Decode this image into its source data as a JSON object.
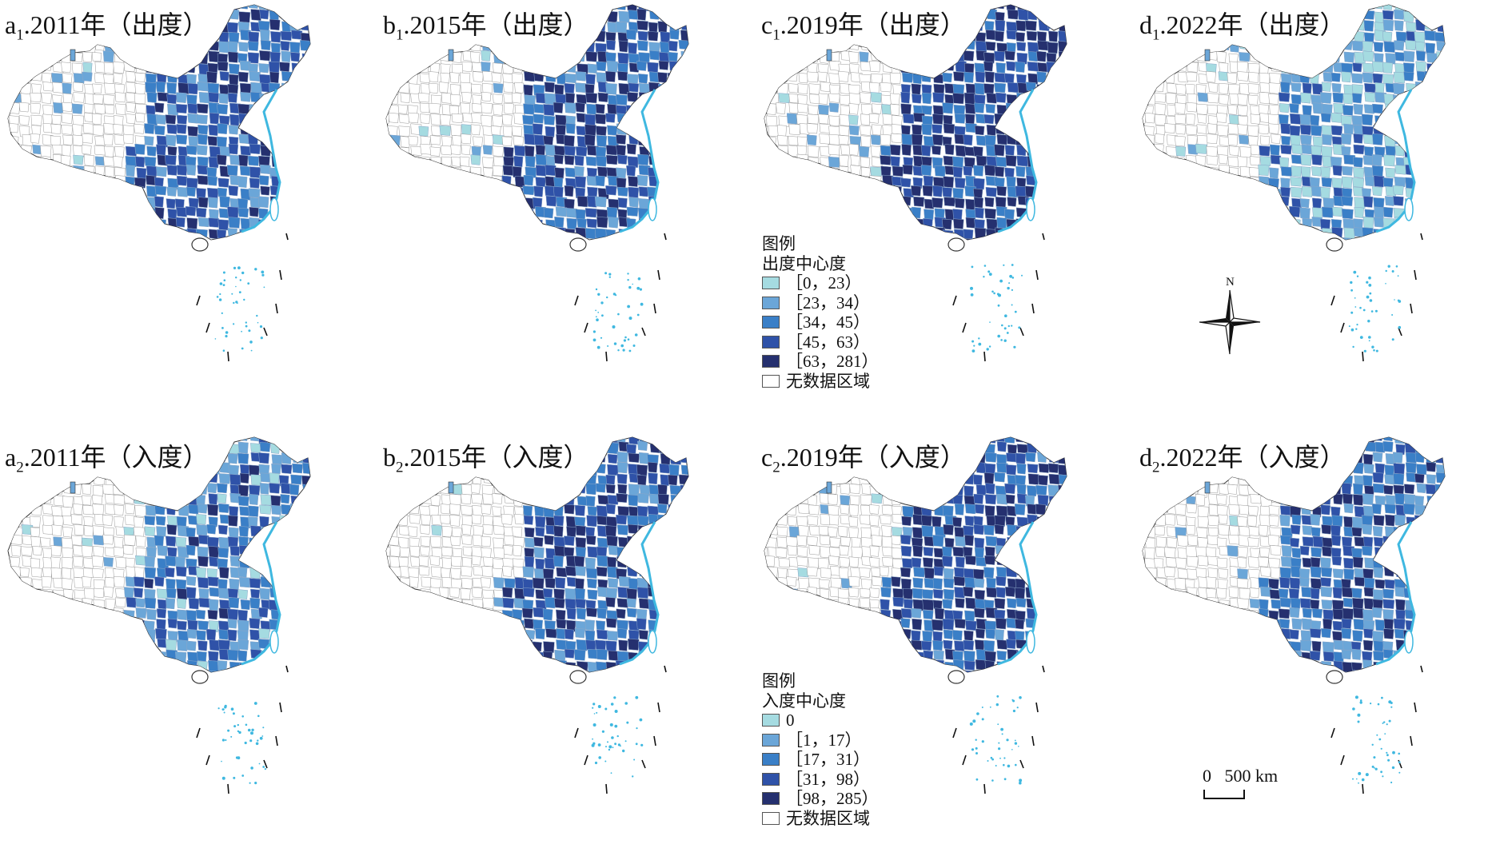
{
  "palette": [
    "#a5dbe1",
    "#6ba6d8",
    "#3a7fc7",
    "#2f52a8",
    "#25306f"
  ],
  "no_data_fill": "#ffffff",
  "coast_color": "#3fb8e0",
  "panels": [
    {
      "id": "a1",
      "letter": "a",
      "sub": "1",
      "year": "2011",
      "rest": "年（出度）",
      "level": 0.58
    },
    {
      "id": "b1",
      "letter": "b",
      "sub": "1",
      "year": "2015",
      "rest": "年（出度）",
      "level": 0.66
    },
    {
      "id": "c1",
      "letter": "c",
      "sub": "1",
      "year": "2019",
      "rest": "年（出度）",
      "level": 0.78
    },
    {
      "id": "d1",
      "letter": "d",
      "sub": "1",
      "year": "2022",
      "rest": "年（出度）",
      "level": 0.36
    },
    {
      "id": "a2",
      "letter": "a",
      "sub": "2",
      "year": "2011",
      "rest": "年（入度）",
      "level": 0.5
    },
    {
      "id": "b2",
      "letter": "b",
      "sub": "2",
      "year": "2015",
      "rest": "年（入度）",
      "level": 0.68
    },
    {
      "id": "c2",
      "letter": "c",
      "sub": "2",
      "year": "2019",
      "rest": "年（入度）",
      "level": 0.74
    },
    {
      "id": "d2",
      "letter": "d",
      "sub": "2",
      "year": "2022",
      "rest": "年（入度）",
      "level": 0.6
    }
  ],
  "legend_out": {
    "title": "图例",
    "subtitle": "出度中心度",
    "items": [
      "［0，23）",
      "［23，34）",
      "［34，45）",
      "［45，63）",
      "［63，281）"
    ],
    "no_data": "无数据区域"
  },
  "legend_in": {
    "title": "图例",
    "subtitle": "入度中心度",
    "items": [
      "0",
      "［1，17）",
      "［17，31）",
      "［31，98）",
      "［98，285）"
    ],
    "no_data": "无数据区域"
  },
  "north_label": "N",
  "scale_label": "0   500 km"
}
